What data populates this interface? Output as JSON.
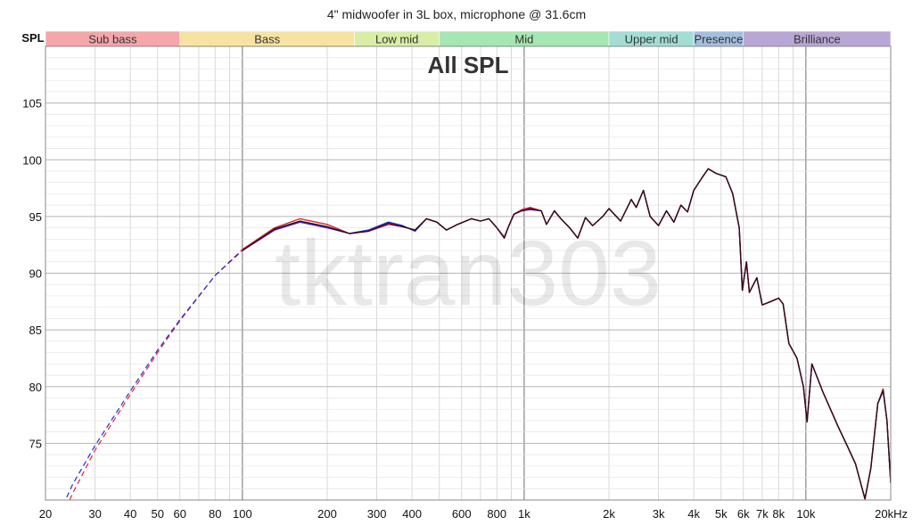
{
  "chart_data": {
    "type": "line",
    "title": "4\" midwoofer in 3L box, microphone @ 31.6cm",
    "inner_title": "All SPL",
    "ylabel": "SPL",
    "xlabel": "",
    "x_scale": "log",
    "xlim": [
      20,
      20000
    ],
    "ylim": [
      70,
      110
    ],
    "x_ticks": [
      {
        "v": 20,
        "label": "20"
      },
      {
        "v": 30,
        "label": "30"
      },
      {
        "v": 40,
        "label": "40"
      },
      {
        "v": 50,
        "label": "50"
      },
      {
        "v": 60,
        "label": "60"
      },
      {
        "v": 80,
        "label": "80"
      },
      {
        "v": 100,
        "label": "100"
      },
      {
        "v": 200,
        "label": "200"
      },
      {
        "v": 300,
        "label": "300"
      },
      {
        "v": 400,
        "label": "400"
      },
      {
        "v": 600,
        "label": "600"
      },
      {
        "v": 800,
        "label": "800"
      },
      {
        "v": 1000,
        "label": "1k"
      },
      {
        "v": 2000,
        "label": "2k"
      },
      {
        "v": 3000,
        "label": "3k"
      },
      {
        "v": 4000,
        "label": "4k"
      },
      {
        "v": 5000,
        "label": "5k"
      },
      {
        "v": 6000,
        "label": "6k"
      },
      {
        "v": 7000,
        "label": "7k"
      },
      {
        "v": 8000,
        "label": "8k"
      },
      {
        "v": 10000,
        "label": "10k"
      },
      {
        "v": 20000,
        "label": "20kHz"
      }
    ],
    "y_ticks": [
      75,
      80,
      85,
      90,
      95,
      100,
      105
    ],
    "grid": true,
    "bands": [
      {
        "name": "Sub bass",
        "from": 20,
        "to": 60,
        "color": "#f4a6aa"
      },
      {
        "name": "Bass",
        "from": 60,
        "to": 250,
        "color": "#f7e3a1"
      },
      {
        "name": "Low mid",
        "from": 250,
        "to": 500,
        "color": "#d8eea6"
      },
      {
        "name": "Mid",
        "from": 500,
        "to": 2000,
        "color": "#a6e6b2"
      },
      {
        "name": "Upper mid",
        "from": 2000,
        "to": 4000,
        "color": "#a3ddd6"
      },
      {
        "name": "Presence",
        "from": 4000,
        "to": 6000,
        "color": "#a3bfe0"
      },
      {
        "name": "Brilliance",
        "from": 6000,
        "to": 20000,
        "color": "#b8a6d4"
      }
    ],
    "series": [
      {
        "color": "#e8202a",
        "points": [
          [
            20,
            65.8
          ],
          [
            22,
            67.6
          ],
          [
            25,
            70.6
          ],
          [
            30,
            74.4
          ],
          [
            40,
            79.3
          ],
          [
            50,
            83.0
          ],
          [
            60,
            85.8
          ],
          [
            80,
            89.8
          ],
          [
            100,
            92.1
          ],
          [
            130,
            94.0
          ],
          [
            160,
            94.8
          ],
          [
            200,
            94.3
          ],
          [
            240,
            93.5
          ],
          [
            280,
            93.7
          ],
          [
            330,
            94.3
          ],
          [
            370,
            94.1
          ],
          [
            410,
            93.8
          ],
          [
            450,
            94.8
          ],
          [
            490,
            94.5
          ],
          [
            530,
            93.8
          ],
          [
            580,
            94.3
          ],
          [
            650,
            94.8
          ],
          [
            700,
            94.6
          ],
          [
            750,
            94.8
          ],
          [
            800,
            94.0
          ],
          [
            850,
            93.2
          ],
          [
            880,
            94.1
          ],
          [
            920,
            95.2
          ],
          [
            980,
            95.6
          ],
          [
            1050,
            95.8
          ],
          [
            1150,
            95.5
          ],
          [
            1200,
            94.3
          ],
          [
            1280,
            95.5
          ],
          [
            1350,
            94.8
          ],
          [
            1450,
            94.0
          ],
          [
            1550,
            93.1
          ],
          [
            1650,
            94.9
          ],
          [
            1750,
            94.2
          ],
          [
            1900,
            95.0
          ],
          [
            2000,
            95.7
          ],
          [
            2200,
            94.6
          ],
          [
            2400,
            96.5
          ],
          [
            2500,
            95.8
          ],
          [
            2650,
            97.3
          ],
          [
            2800,
            95.0
          ],
          [
            3000,
            94.2
          ],
          [
            3200,
            95.5
          ],
          [
            3400,
            94.5
          ],
          [
            3600,
            96.0
          ],
          [
            3800,
            95.4
          ],
          [
            4000,
            97.3
          ],
          [
            4300,
            98.5
          ],
          [
            4500,
            99.2
          ],
          [
            4800,
            98.8
          ],
          [
            5200,
            98.5
          ],
          [
            5500,
            97.0
          ],
          [
            5800,
            94.0
          ],
          [
            5950,
            88.5
          ],
          [
            6150,
            91.0
          ],
          [
            6300,
            88.3
          ],
          [
            6700,
            89.6
          ],
          [
            7000,
            87.2
          ],
          [
            7500,
            87.5
          ],
          [
            8000,
            87.8
          ],
          [
            8300,
            87.3
          ],
          [
            8700,
            83.8
          ],
          [
            9300,
            82.5
          ],
          [
            9800,
            80.0
          ],
          [
            10100,
            76.9
          ],
          [
            10500,
            82.0
          ],
          [
            11500,
            79.5
          ],
          [
            13000,
            76.5
          ],
          [
            14000,
            74.8
          ],
          [
            15000,
            73.2
          ],
          [
            16200,
            70.1
          ],
          [
            17000,
            72.8
          ],
          [
            18000,
            78.5
          ],
          [
            18800,
            79.8
          ],
          [
            19400,
            77.0
          ],
          [
            20000,
            71.5
          ]
        ]
      },
      {
        "color": "#1f2fd0",
        "points": [
          [
            20,
            66.8
          ],
          [
            22,
            68.4
          ],
          [
            25,
            71.4
          ],
          [
            30,
            74.8
          ],
          [
            40,
            79.6
          ],
          [
            50,
            83.2
          ],
          [
            60,
            85.9
          ],
          [
            80,
            89.8
          ],
          [
            100,
            92.0
          ],
          [
            130,
            93.8
          ],
          [
            160,
            94.5
          ],
          [
            200,
            94.0
          ],
          [
            240,
            93.5
          ],
          [
            280,
            93.8
          ],
          [
            330,
            94.5
          ],
          [
            370,
            94.2
          ],
          [
            410,
            93.7
          ],
          [
            450,
            94.8
          ],
          [
            490,
            94.5
          ],
          [
            530,
            93.8
          ],
          [
            580,
            94.3
          ],
          [
            650,
            94.8
          ],
          [
            700,
            94.6
          ],
          [
            750,
            94.8
          ],
          [
            800,
            94.0
          ],
          [
            850,
            93.1
          ],
          [
            880,
            94.1
          ],
          [
            920,
            95.2
          ],
          [
            980,
            95.5
          ],
          [
            1050,
            95.6
          ],
          [
            1150,
            95.5
          ],
          [
            1200,
            94.3
          ],
          [
            1280,
            95.5
          ],
          [
            1350,
            94.8
          ],
          [
            1450,
            94.0
          ],
          [
            1550,
            93.1
          ],
          [
            1650,
            94.9
          ],
          [
            1750,
            94.2
          ],
          [
            1900,
            95.0
          ],
          [
            2000,
            95.7
          ],
          [
            2200,
            94.6
          ],
          [
            2400,
            96.5
          ],
          [
            2500,
            95.8
          ],
          [
            2650,
            97.3
          ],
          [
            2800,
            95.0
          ],
          [
            3000,
            94.2
          ],
          [
            3200,
            95.5
          ],
          [
            3400,
            94.5
          ],
          [
            3600,
            96.0
          ],
          [
            3800,
            95.4
          ],
          [
            4000,
            97.3
          ],
          [
            4300,
            98.5
          ],
          [
            4500,
            99.2
          ],
          [
            4800,
            98.8
          ],
          [
            5200,
            98.5
          ],
          [
            5500,
            97.0
          ],
          [
            5800,
            94.0
          ],
          [
            5950,
            88.5
          ],
          [
            6150,
            91.0
          ],
          [
            6300,
            88.3
          ],
          [
            6700,
            89.6
          ],
          [
            7000,
            87.2
          ],
          [
            7500,
            87.5
          ],
          [
            8000,
            87.8
          ],
          [
            8300,
            87.3
          ],
          [
            8700,
            83.8
          ],
          [
            9300,
            82.5
          ],
          [
            9800,
            80.0
          ],
          [
            10100,
            76.9
          ],
          [
            10500,
            82.0
          ],
          [
            11500,
            79.5
          ],
          [
            13000,
            76.5
          ],
          [
            14000,
            74.8
          ],
          [
            15000,
            73.2
          ],
          [
            16200,
            70.1
          ],
          [
            17000,
            72.8
          ],
          [
            18000,
            78.5
          ],
          [
            18800,
            79.6
          ],
          [
            19400,
            77.0
          ],
          [
            20000,
            71.5
          ]
        ]
      },
      {
        "color": "#3a0a14",
        "points": [
          [
            20,
            66.6
          ],
          [
            22,
            68.3
          ],
          [
            25,
            71.3
          ],
          [
            30,
            74.7
          ],
          [
            40,
            79.5
          ],
          [
            50,
            83.1
          ],
          [
            60,
            85.9
          ],
          [
            80,
            89.8
          ],
          [
            100,
            92.0
          ],
          [
            130,
            93.9
          ],
          [
            160,
            94.6
          ],
          [
            200,
            94.1
          ],
          [
            240,
            93.5
          ],
          [
            280,
            93.7
          ],
          [
            330,
            94.4
          ],
          [
            370,
            94.1
          ],
          [
            410,
            93.8
          ],
          [
            450,
            94.8
          ],
          [
            490,
            94.5
          ],
          [
            530,
            93.8
          ],
          [
            580,
            94.3
          ],
          [
            650,
            94.8
          ],
          [
            700,
            94.6
          ],
          [
            750,
            94.8
          ],
          [
            800,
            94.0
          ],
          [
            850,
            93.1
          ],
          [
            880,
            94.1
          ],
          [
            920,
            95.2
          ],
          [
            980,
            95.5
          ],
          [
            1050,
            95.7
          ],
          [
            1150,
            95.5
          ],
          [
            1200,
            94.3
          ],
          [
            1280,
            95.5
          ],
          [
            1350,
            94.8
          ],
          [
            1450,
            94.0
          ],
          [
            1550,
            93.1
          ],
          [
            1650,
            94.9
          ],
          [
            1750,
            94.2
          ],
          [
            1900,
            95.0
          ],
          [
            2000,
            95.7
          ],
          [
            2200,
            94.6
          ],
          [
            2400,
            96.5
          ],
          [
            2500,
            95.8
          ],
          [
            2650,
            97.3
          ],
          [
            2800,
            95.0
          ],
          [
            3000,
            94.2
          ],
          [
            3200,
            95.5
          ],
          [
            3400,
            94.5
          ],
          [
            3600,
            96.0
          ],
          [
            3800,
            95.4
          ],
          [
            4000,
            97.3
          ],
          [
            4300,
            98.5
          ],
          [
            4500,
            99.2
          ],
          [
            4800,
            98.8
          ],
          [
            5200,
            98.5
          ],
          [
            5500,
            97.0
          ],
          [
            5800,
            94.0
          ],
          [
            5950,
            88.5
          ],
          [
            6150,
            91.0
          ],
          [
            6300,
            88.3
          ],
          [
            6700,
            89.6
          ],
          [
            7000,
            87.2
          ],
          [
            7500,
            87.5
          ],
          [
            8000,
            87.8
          ],
          [
            8300,
            87.3
          ],
          [
            8700,
            83.8
          ],
          [
            9300,
            82.5
          ],
          [
            9800,
            80.0
          ],
          [
            10100,
            76.9
          ],
          [
            10500,
            82.0
          ],
          [
            11500,
            79.5
          ],
          [
            13000,
            76.5
          ],
          [
            14000,
            74.8
          ],
          [
            15000,
            73.2
          ],
          [
            16200,
            70.1
          ],
          [
            17000,
            72.8
          ],
          [
            18000,
            78.5
          ],
          [
            18800,
            79.7
          ],
          [
            19400,
            77.0
          ],
          [
            20000,
            71.5
          ]
        ]
      }
    ],
    "dashed_extensions": [
      {
        "color": "#e8202a",
        "points": [
          [
            20,
            65.8
          ],
          [
            22,
            67.6
          ],
          [
            25,
            70.6
          ],
          [
            30,
            74.4
          ],
          [
            40,
            79.3
          ],
          [
            50,
            83.0
          ],
          [
            60,
            85.8
          ],
          [
            80,
            89.8
          ],
          [
            100,
            92.1
          ]
        ]
      },
      {
        "color": "#1f2fd0",
        "points": [
          [
            20,
            66.8
          ],
          [
            22,
            68.4
          ],
          [
            25,
            71.4
          ],
          [
            30,
            74.8
          ],
          [
            40,
            79.6
          ],
          [
            50,
            83.2
          ],
          [
            60,
            85.9
          ],
          [
            80,
            89.8
          ],
          [
            100,
            92.0
          ]
        ]
      }
    ],
    "watermark": "tktran303"
  }
}
